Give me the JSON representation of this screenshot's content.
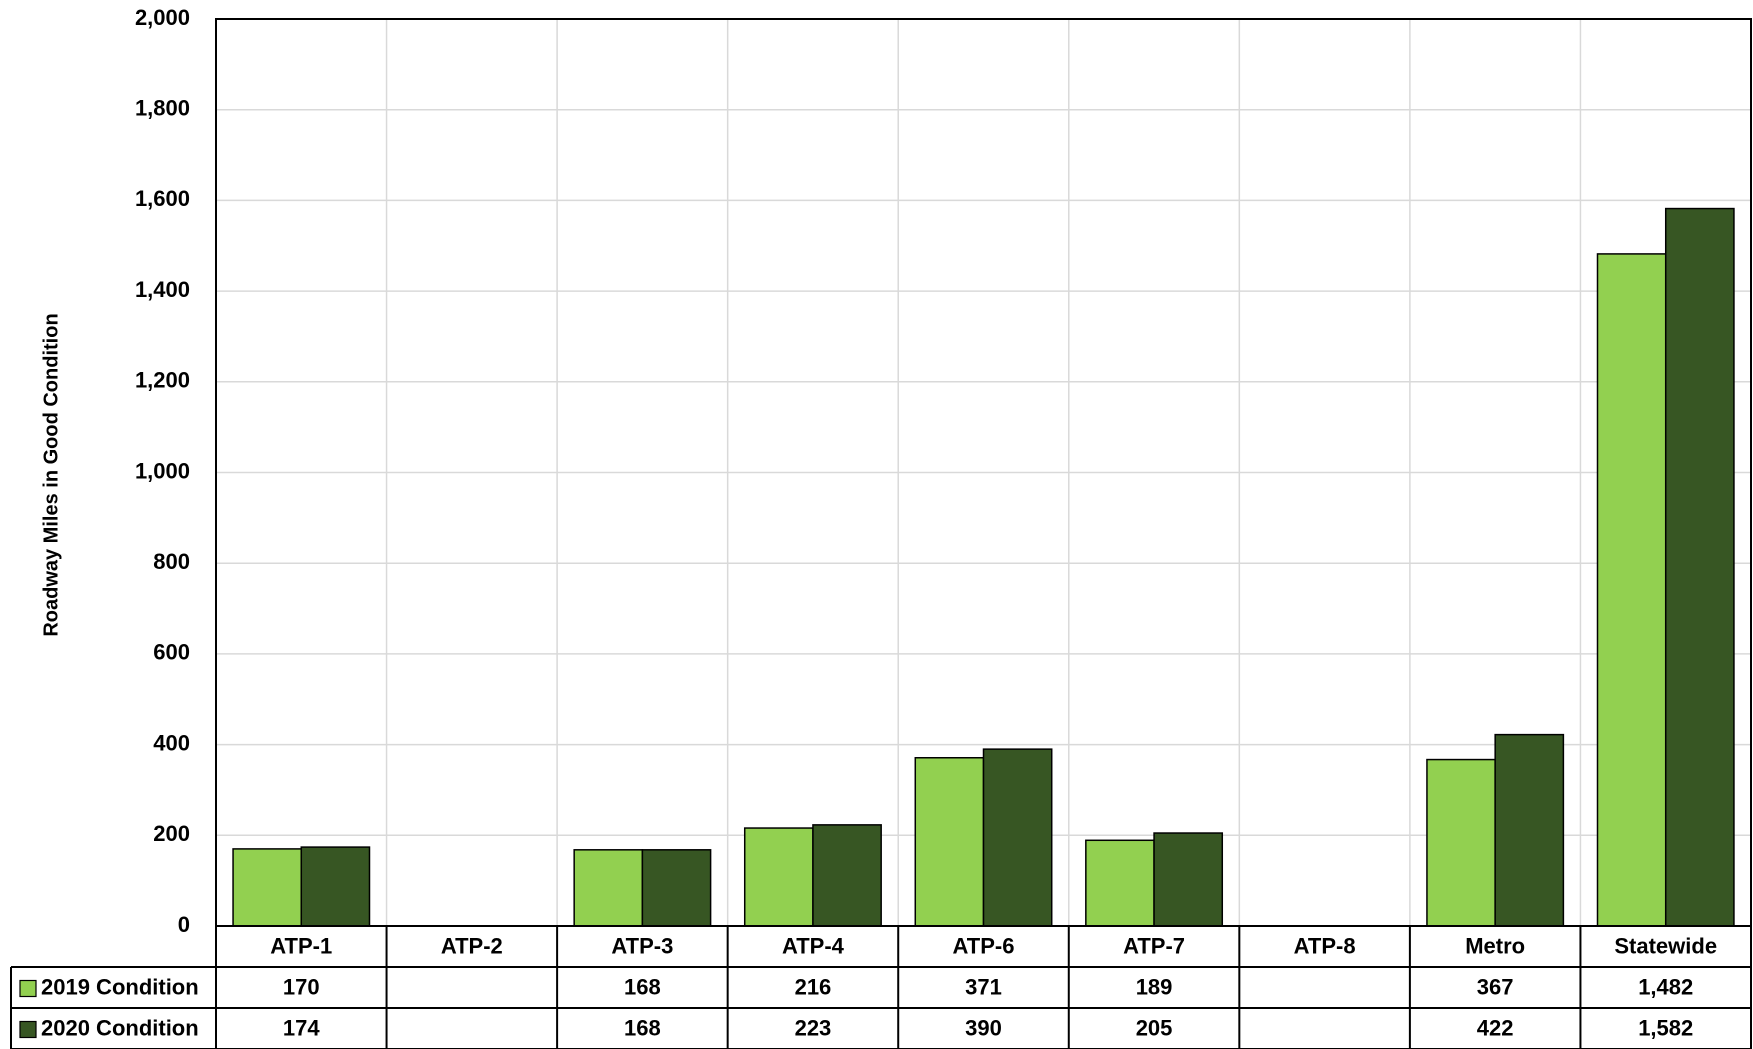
{
  "chart_data": {
    "type": "bar",
    "y_label": "Roadway Miles in Good Condition",
    "categories": [
      "ATP-1",
      "ATP-2",
      "ATP-3",
      "ATP-4",
      "ATP-6",
      "ATP-7",
      "ATP-8",
      "Metro",
      "Statewide"
    ],
    "series": [
      {
        "name": "2019 Condition",
        "color": "#92d050",
        "values": [
          170,
          null,
          168,
          216,
          371,
          189,
          null,
          367,
          1482
        ],
        "value_labels": [
          "170",
          null,
          "168",
          "216",
          "371",
          "189",
          null,
          "367",
          "1,482"
        ]
      },
      {
        "name": "2020 Condition",
        "color": "#375623",
        "values": [
          174,
          null,
          168,
          223,
          390,
          205,
          null,
          422,
          1582
        ],
        "value_labels": [
          "174",
          null,
          "168",
          "223",
          "390",
          "205",
          null,
          "422",
          "1,582"
        ]
      }
    ],
    "ylim": [
      0,
      2000
    ],
    "yticks": [
      0,
      200,
      400,
      600,
      800,
      {
        "value": 1000,
        "label": "1,000"
      },
      {
        "value": 1200,
        "label": "1,200"
      },
      {
        "value": 1400,
        "label": "1,400"
      },
      {
        "value": 1600,
        "label": "1,600"
      },
      {
        "value": 1800,
        "label": "1,800"
      },
      {
        "value": 2000,
        "label": "2,000"
      }
    ],
    "grid": true
  }
}
